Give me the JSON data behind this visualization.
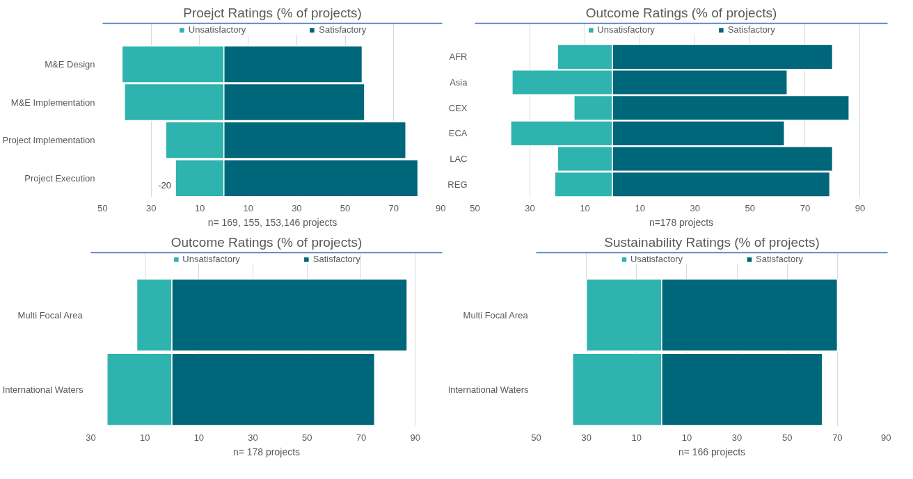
{
  "chart_data": [
    {
      "type": "bar",
      "orientation": "horizontal",
      "stacked": true,
      "title": "Proejct Ratings (% of projects)",
      "xlabel": "n= 169, 155, 153,146 projects",
      "categories": [
        "M&E Design",
        "M&E Implementation",
        "Project Implementation",
        "Project Execution"
      ],
      "series": [
        {
          "name": "Unsatisfactory",
          "color": "#2fb3af",
          "values": [
            -42,
            -41,
            -24,
            -20
          ]
        },
        {
          "name": "Satisfactory",
          "color": "#006679",
          "values": [
            57,
            58,
            75,
            80
          ]
        }
      ],
      "annotations": [
        {
          "text": "-20",
          "x": -20,
          "y": "Project Execution"
        }
      ],
      "xlim": [
        -50,
        90
      ],
      "xticks": [
        {
          "value": -50,
          "label": "50"
        },
        {
          "value": -30,
          "label": "30"
        },
        {
          "value": -10,
          "label": "10"
        },
        10,
        30,
        50,
        70,
        90
      ],
      "grid": "x",
      "legend": "top"
    },
    {
      "type": "bar",
      "orientation": "horizontal",
      "stacked": true,
      "title": "Outcome Ratings (% of projects)",
      "xlabel": "n=178 projects",
      "categories": [
        "AFR",
        "Asia",
        "CEX",
        "ECA",
        "LAC",
        "REG"
      ],
      "series": [
        {
          "name": "Unsatisfactory",
          "color": "#2fb3af",
          "values": [
            -20,
            -36.5,
            -14,
            -37,
            -20,
            -21
          ]
        },
        {
          "name": "Satisfactory",
          "color": "#006679",
          "values": [
            80,
            63.5,
            86,
            62.5,
            80,
            79
          ]
        }
      ],
      "xlim": [
        -50,
        100
      ],
      "xticks": [
        {
          "value": -50,
          "label": "50"
        },
        {
          "value": -30,
          "label": "30"
        },
        {
          "value": -10,
          "label": "10"
        },
        10,
        30,
        50,
        70,
        90
      ],
      "grid": "x",
      "legend": "top"
    },
    {
      "type": "bar",
      "orientation": "horizontal",
      "stacked": true,
      "title": "Outcome Ratings (% of projects)",
      "xlabel": "n= 178 projects",
      "categories": [
        "Multi Focal Area",
        "International Waters"
      ],
      "series": [
        {
          "name": "Unsatisfactory",
          "color": "#2fb3af",
          "values": [
            -13,
            -24
          ]
        },
        {
          "name": "Satisfactory",
          "color": "#006679",
          "values": [
            87,
            75
          ]
        }
      ],
      "xlim": [
        -30,
        100
      ],
      "xticks": [
        {
          "value": -30,
          "label": "30"
        },
        {
          "value": -10,
          "label": "10"
        },
        10,
        30,
        50,
        70,
        90
      ],
      "grid": "x",
      "legend": "top"
    },
    {
      "type": "bar",
      "orientation": "horizontal",
      "stacked": true,
      "title": "Sustainability Ratings (% of projects)",
      "xlabel": "n= 166 projects",
      "categories": [
        "Multi Focal Area",
        "International Waters"
      ],
      "series": [
        {
          "name": "Usatisfactory",
          "color": "#2fb3af",
          "values": [
            -30,
            -35.5
          ]
        },
        {
          "name": "Satisfactory",
          "color": "#006679",
          "values": [
            70,
            64
          ]
        }
      ],
      "xlim": [
        -50,
        90
      ],
      "xticks": [
        {
          "value": -50,
          "label": "50"
        },
        {
          "value": -30,
          "label": "30"
        },
        {
          "value": -10,
          "label": "10"
        },
        10,
        30,
        50,
        70,
        90
      ],
      "grid": "x",
      "legend": "top"
    }
  ]
}
